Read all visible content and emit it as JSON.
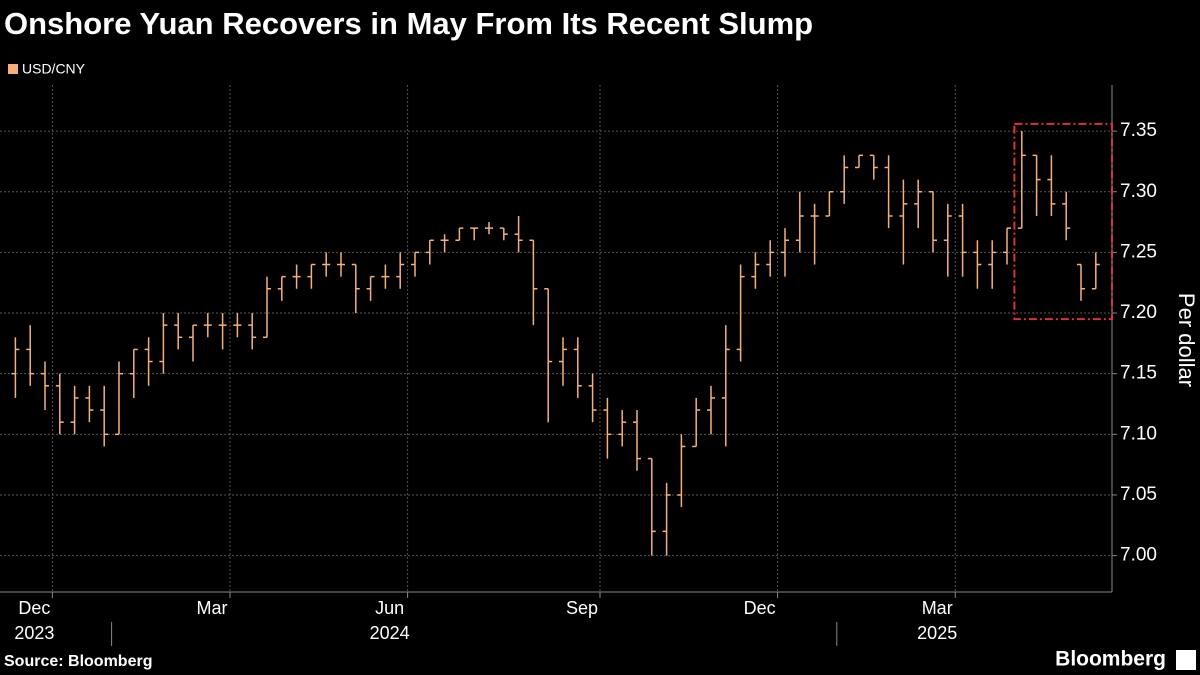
{
  "chart_data": {
    "type": "ohlc",
    "title": "Onshore Yuan Recovers in May From Its Recent Slump",
    "y_axis_label": "Per dollar",
    "source": "Source: Bloomberg",
    "brand": "Bloomberg",
    "x": [
      "2023-11",
      "2023-11",
      "2023-11",
      "2023-12",
      "2023-12",
      "2023-12",
      "2023-12",
      "2024-01",
      "2024-01",
      "2024-01",
      "2024-01",
      "2024-02",
      "2024-02",
      "2024-02",
      "2024-02",
      "2024-03",
      "2024-03",
      "2024-03",
      "2024-03",
      "2024-04",
      "2024-04",
      "2024-04",
      "2024-04",
      "2024-05",
      "2024-05",
      "2024-05",
      "2024-05",
      "2024-06",
      "2024-06",
      "2024-06",
      "2024-06",
      "2024-07",
      "2024-07",
      "2024-07",
      "2024-07",
      "2024-07",
      "2024-08",
      "2024-08",
      "2024-08",
      "2024-08",
      "2024-09",
      "2024-09",
      "2024-09",
      "2024-09",
      "2024-10",
      "2024-10",
      "2024-10",
      "2024-10",
      "2024-11",
      "2024-11",
      "2024-11",
      "2024-11",
      "2024-12",
      "2024-12",
      "2024-12",
      "2024-12",
      "2025-01",
      "2025-01",
      "2025-01",
      "2025-01",
      "2025-02",
      "2025-02",
      "2025-02",
      "2025-02",
      "2025-03",
      "2025-03",
      "2025-03",
      "2025-03",
      "2025-04",
      "2025-04",
      "2025-04",
      "2025-04",
      "2025-05",
      "2025-05"
    ],
    "series": [
      {
        "name": "USD/CNY",
        "color": "#f5b07a",
        "open": [
          7.15,
          7.17,
          7.15,
          7.14,
          7.11,
          7.13,
          7.12,
          7.1,
          7.15,
          7.17,
          7.16,
          7.19,
          7.18,
          7.19,
          7.19,
          7.19,
          7.19,
          7.18,
          7.22,
          7.23,
          7.23,
          7.24,
          7.24,
          7.24,
          7.22,
          7.23,
          7.23,
          7.24,
          7.25,
          7.26,
          7.26,
          7.27,
          7.27,
          7.27,
          7.265,
          7.26,
          7.22,
          7.16,
          7.17,
          7.14,
          7.12,
          7.1,
          7.11,
          7.08,
          7.02,
          7.05,
          7.09,
          7.12,
          7.13,
          7.17,
          7.23,
          7.24,
          7.25,
          7.26,
          7.28,
          7.28,
          7.3,
          7.32,
          7.33,
          7.32,
          7.28,
          7.29,
          7.3,
          7.26,
          7.28,
          7.25,
          7.24,
          7.25,
          7.27,
          7.33,
          7.31,
          7.29,
          7.24,
          7.22
        ],
        "high": [
          7.18,
          7.19,
          7.16,
          7.15,
          7.14,
          7.14,
          7.14,
          7.16,
          7.17,
          7.18,
          7.2,
          7.2,
          7.19,
          7.2,
          7.2,
          7.2,
          7.2,
          7.23,
          7.23,
          7.24,
          7.24,
          7.25,
          7.25,
          7.24,
          7.23,
          7.24,
          7.25,
          7.25,
          7.26,
          7.265,
          7.27,
          7.27,
          7.275,
          7.27,
          7.28,
          7.26,
          7.22,
          7.18,
          7.18,
          7.15,
          7.13,
          7.12,
          7.12,
          7.08,
          7.06,
          7.1,
          7.13,
          7.14,
          7.19,
          7.24,
          7.25,
          7.26,
          7.27,
          7.3,
          7.29,
          7.3,
          7.33,
          7.33,
          7.33,
          7.33,
          7.31,
          7.31,
          7.3,
          7.29,
          7.29,
          7.26,
          7.26,
          7.27,
          7.35,
          7.33,
          7.33,
          7.3,
          7.24,
          7.25
        ],
        "low": [
          7.13,
          7.14,
          7.12,
          7.1,
          7.1,
          7.11,
          7.09,
          7.1,
          7.13,
          7.14,
          7.15,
          7.17,
          7.16,
          7.18,
          7.17,
          7.18,
          7.17,
          7.18,
          7.21,
          7.22,
          7.22,
          7.23,
          7.23,
          7.2,
          7.21,
          7.22,
          7.22,
          7.23,
          7.24,
          7.25,
          7.26,
          7.26,
          7.265,
          7.26,
          7.25,
          7.19,
          7.11,
          7.14,
          7.13,
          7.11,
          7.08,
          7.09,
          7.07,
          7.0,
          7.0,
          7.04,
          7.09,
          7.1,
          7.09,
          7.16,
          7.22,
          7.23,
          7.23,
          7.25,
          7.24,
          7.28,
          7.29,
          7.32,
          7.31,
          7.27,
          7.24,
          7.27,
          7.25,
          7.23,
          7.23,
          7.22,
          7.22,
          7.24,
          7.27,
          7.28,
          7.28,
          7.26,
          7.21,
          7.22
        ],
        "close": [
          7.17,
          7.15,
          7.14,
          7.11,
          7.13,
          7.12,
          7.1,
          7.15,
          7.17,
          7.16,
          7.19,
          7.18,
          7.19,
          7.19,
          7.19,
          7.19,
          7.18,
          7.22,
          7.23,
          7.23,
          7.24,
          7.24,
          7.24,
          7.22,
          7.23,
          7.23,
          7.24,
          7.25,
          7.26,
          7.26,
          7.27,
          7.27,
          7.27,
          7.265,
          7.26,
          7.22,
          7.16,
          7.17,
          7.14,
          7.12,
          7.1,
          7.11,
          7.08,
          7.02,
          7.05,
          7.09,
          7.12,
          7.13,
          7.17,
          7.23,
          7.24,
          7.25,
          7.26,
          7.28,
          7.28,
          7.3,
          7.32,
          7.33,
          7.32,
          7.28,
          7.29,
          7.3,
          7.26,
          7.28,
          7.25,
          7.24,
          7.25,
          7.27,
          7.33,
          7.31,
          7.29,
          7.27,
          7.22,
          7.24
        ]
      }
    ],
    "ylim": [
      6.97,
      7.388
    ],
    "yticks": [
      {
        "value": 7.0,
        "label": "7.00"
      },
      {
        "value": 7.05,
        "label": "7.05"
      },
      {
        "value": 7.1,
        "label": "7.10"
      },
      {
        "value": 7.15,
        "label": "7.15"
      },
      {
        "value": 7.2,
        "label": "7.20"
      },
      {
        "value": 7.25,
        "label": "7.25"
      },
      {
        "value": 7.3,
        "label": "7.30"
      },
      {
        "value": 7.35,
        "label": "7.35"
      }
    ],
    "xticks": [
      {
        "value": "2023-12",
        "label": "Dec"
      },
      {
        "value": "2024-03",
        "label": "Mar"
      },
      {
        "value": "2024-06",
        "label": "Jun"
      },
      {
        "value": "2024-09",
        "label": "Sep"
      },
      {
        "value": "2024-12",
        "label": "Dec"
      },
      {
        "value": "2025-03",
        "label": "Mar"
      }
    ],
    "year_labels": [
      {
        "value": "2023-12",
        "label": "2023"
      },
      {
        "value": "2024-06",
        "label": "2024"
      },
      {
        "value": "2025-03",
        "label": "2025"
      }
    ],
    "highlight": {
      "x": "2025-04",
      "ylim": [
        7.195,
        7.356
      ],
      "color": "#e0303a"
    },
    "grid": true
  }
}
